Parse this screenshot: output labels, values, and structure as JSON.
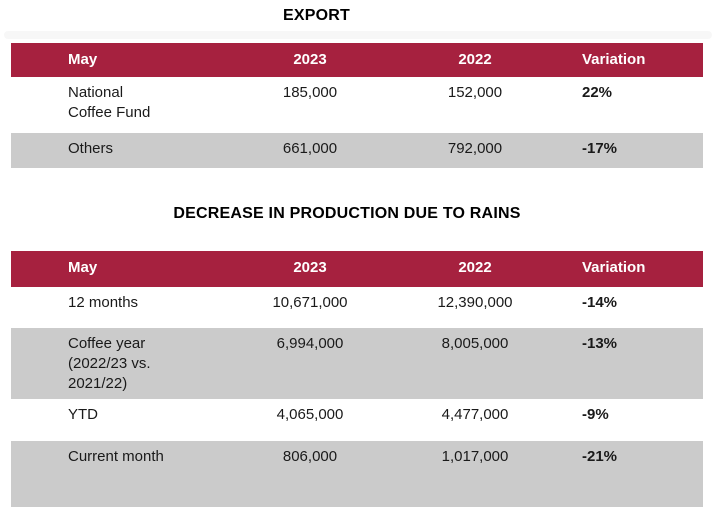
{
  "colors": {
    "header_bg": "#a6213f",
    "header_text": "#ffffff",
    "row_alt_bg": "#cbcbcb",
    "row_bg": "#ffffff",
    "body_text": "#1a1a1a"
  },
  "tables": [
    {
      "title": "EXPORT",
      "columns": [
        "May",
        "2023",
        "2022",
        "Variation"
      ],
      "rows": [
        {
          "label": "National\nCoffee Fund",
          "y2023": "185,000",
          "y2022": "152,000",
          "variation": "22%"
        },
        {
          "label": "Others",
          "y2023": "661,000",
          "y2022": "792,000",
          "variation": "-17%"
        }
      ]
    },
    {
      "title": "DECREASE IN PRODUCTION DUE TO RAINS",
      "columns": [
        "May",
        "2023",
        "2022",
        "Variation"
      ],
      "rows": [
        {
          "label": "12 months",
          "y2023": "10,671,000",
          "y2022": "12,390,000",
          "variation": "-14%"
        },
        {
          "label": "Coffee year\n(2022/23 vs.\n2021/22)",
          "y2023": "6,994,000",
          "y2022": "8,005,000",
          "variation": "-13%"
        },
        {
          "label": "YTD",
          "y2023": "4,065,000",
          "y2022": "4,477,000",
          "variation": "-9%"
        },
        {
          "label": "Current month",
          "y2023": "806,000",
          "y2022": "1,017,000",
          "variation": "-21%"
        }
      ]
    }
  ]
}
